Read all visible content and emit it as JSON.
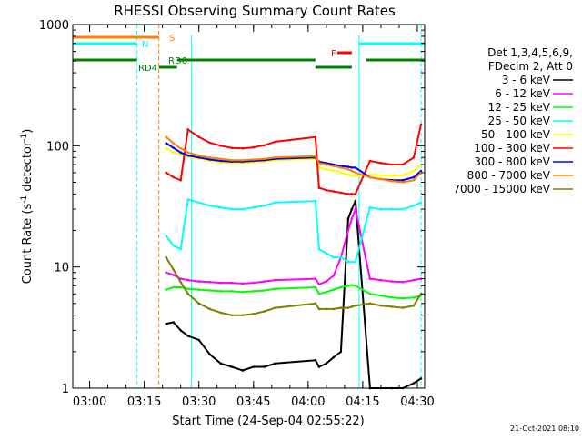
{
  "chart_data": {
    "type": "line",
    "title": "RHESSI Observing Summary Count Rates",
    "xlabel": "Start Time (24-Sep-04 02:55:22)",
    "ylabel_parts": [
      "Count Rate (s",
      "-1",
      " detector",
      "-1",
      ")"
    ],
    "yscale": "log",
    "ylim": [
      1,
      1000
    ],
    "y_ticks": [
      "1",
      "10",
      "100",
      "1000"
    ],
    "xlim": [
      "02:55:22",
      "04:32:00"
    ],
    "x_ticks": [
      "03:00",
      "03:15",
      "03:30",
      "03:45",
      "04:00",
      "04:15",
      "04:30"
    ],
    "legend_header": [
      "Det 1,3,4,5,6,9,",
      "FDecim 2, Att 0"
    ],
    "legend_position": "right",
    "series": [
      {
        "name": "3 - 6 keV",
        "color": "#000000",
        "values": [
          [
            3.4,
            3.5,
            3.0,
            2.7,
            2.5,
            1.9,
            1.6,
            1.5,
            1.4,
            1.5,
            1.5,
            1.6,
            1.7,
            1.5,
            1.6,
            1.8,
            2.0,
            25,
            30,
            35,
            1.0,
            1.0,
            1.0,
            1.0,
            1.1,
            1.2
          ]
        ]
      },
      {
        "name": "6 - 12 keV",
        "color": "#ff00ff",
        "values": [
          [
            9.0,
            8.6,
            8.0,
            7.8,
            7.6,
            7.5,
            7.4,
            7.4,
            7.3,
            7.4,
            7.6,
            7.8,
            8.0,
            7.2,
            7.6,
            8.5,
            12,
            20,
            25,
            30,
            8.0,
            7.8,
            7.6,
            7.5,
            7.8,
            8.0
          ]
        ]
      },
      {
        "name": "12 - 25 keV",
        "color": "#00ff00",
        "values": [
          [
            6.5,
            6.8,
            6.8,
            6.6,
            6.5,
            6.4,
            6.3,
            6.3,
            6.2,
            6.3,
            6.4,
            6.6,
            6.8,
            6.0,
            6.2,
            6.5,
            6.8,
            7.0,
            7.1,
            7.0,
            6.0,
            5.8,
            5.6,
            5.5,
            5.6,
            5.8
          ]
        ]
      },
      {
        "name": "25 - 50 keV",
        "color": "#00ffff",
        "values": [
          [
            18,
            15,
            14,
            36,
            34,
            32,
            31,
            30,
            30,
            31,
            32,
            34,
            35,
            14,
            13,
            12,
            12,
            11,
            11,
            11,
            31,
            30,
            30,
            30,
            32,
            34
          ]
        ]
      },
      {
        "name": "50 - 100 keV",
        "color": "#ffff00",
        "values": [
          [
            95,
            88,
            85,
            81,
            78,
            75,
            73,
            72,
            72,
            73,
            74,
            76,
            78,
            66,
            64,
            62,
            60,
            58,
            57,
            56,
            58,
            57,
            57,
            57,
            62,
            70
          ]
        ]
      },
      {
        "name": "100 - 300 keV",
        "color": "#ff0000",
        "values": [
          [
            60,
            55,
            52,
            136,
            118,
            106,
            100,
            96,
            95,
            97,
            101,
            108,
            118,
            45,
            43,
            42,
            41,
            40,
            40,
            40,
            75,
            72,
            70,
            70,
            80,
            150
          ]
        ]
      },
      {
        "name": "300 - 800 keV",
        "color": "#0000ff",
        "values": [
          [
            105,
            96,
            88,
            83,
            80,
            77,
            75,
            74,
            74,
            75,
            76,
            78,
            80,
            74,
            72,
            70,
            68,
            67,
            66,
            66,
            55,
            53,
            52,
            52,
            55,
            62
          ]
        ]
      },
      {
        "name": "800 - 7000 keV",
        "color": "#ff8000",
        "values": [
          [
            118,
            105,
            95,
            88,
            83,
            80,
            78,
            76,
            76,
            77,
            78,
            80,
            82,
            72,
            70,
            68,
            66,
            64,
            62,
            60,
            55,
            53,
            51,
            50,
            52,
            60
          ]
        ]
      },
      {
        "name": "7000 - 15000 keV",
        "color": "#808000",
        "values": [
          [
            12,
            9.5,
            7.5,
            6.0,
            5.0,
            4.5,
            4.2,
            4.0,
            4.0,
            4.1,
            4.3,
            4.6,
            5.0,
            4.5,
            4.5,
            4.5,
            4.6,
            4.6,
            4.7,
            4.8,
            5.0,
            4.8,
            4.7,
            4.6,
            4.8,
            6.0
          ]
        ]
      }
    ],
    "x_samples": [
      "03:21",
      "03:23",
      "03:25",
      "03:27",
      "03:30",
      "03:33",
      "03:36",
      "03:39",
      "03:42",
      "03:45",
      "03:48",
      "03:51",
      "04:02",
      "04:03",
      "04:05",
      "04:07",
      "04:09",
      "04:11",
      "04:12",
      "04:13",
      "04:17",
      "04:20",
      "04:23",
      "04:26",
      "04:29",
      "04:31"
    ],
    "flags": [
      {
        "label": "S",
        "color": "#ff8000",
        "segments": [
          [
            "02:55:22",
            "03:19"
          ]
        ]
      },
      {
        "label": "N",
        "color": "#00ffff",
        "segments": [
          [
            "02:55:22",
            "03:13"
          ],
          [
            "04:14",
            "04:32"
          ]
        ]
      },
      {
        "label": "F",
        "color": "#ff0000",
        "segments": [
          [
            "04:08",
            "04:12"
          ]
        ]
      },
      {
        "label": "RD0",
        "color": "#008000",
        "segments": [
          [
            "02:55:22",
            "03:13"
          ],
          [
            "03:24",
            "04:02"
          ],
          [
            "04:16",
            "04:32"
          ]
        ]
      },
      {
        "label": "RD4",
        "color": "#008000",
        "segments": [
          [
            "03:19",
            "03:24"
          ],
          [
            "04:02",
            "04:12"
          ]
        ]
      }
    ],
    "vertical_lines": [
      {
        "time": "03:13",
        "color": "#00ffff"
      },
      {
        "time": "03:19",
        "color": "#ff8000"
      },
      {
        "time": "04:31",
        "color": "#00ffff"
      }
    ],
    "solid_lines": [
      {
        "time": "03:28",
        "color": "#00ffff"
      },
      {
        "time": "04:14",
        "color": "#00ffff"
      }
    ],
    "footer_date": "21-Oct-2021 08:10",
    "grid": false
  }
}
